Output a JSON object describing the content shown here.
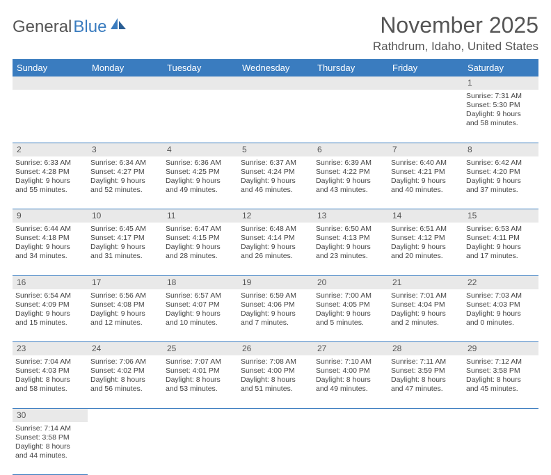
{
  "logo": {
    "general": "General",
    "blue": "Blue"
  },
  "title": "November 2025",
  "location": "Rathdrum, Idaho, United States",
  "colors": {
    "header_bg": "#3a7cbf",
    "header_text": "#ffffff",
    "daynum_bg": "#e9e9e9",
    "border": "#3a7cbf",
    "body_text": "#444",
    "title_text": "#555"
  },
  "day_headers": [
    "Sunday",
    "Monday",
    "Tuesday",
    "Wednesday",
    "Thursday",
    "Friday",
    "Saturday"
  ],
  "weeks": [
    [
      null,
      null,
      null,
      null,
      null,
      null,
      {
        "n": "1",
        "sr": "Sunrise: 7:31 AM",
        "ss": "Sunset: 5:30 PM",
        "d1": "Daylight: 9 hours",
        "d2": "and 58 minutes."
      }
    ],
    [
      {
        "n": "2",
        "sr": "Sunrise: 6:33 AM",
        "ss": "Sunset: 4:28 PM",
        "d1": "Daylight: 9 hours",
        "d2": "and 55 minutes."
      },
      {
        "n": "3",
        "sr": "Sunrise: 6:34 AM",
        "ss": "Sunset: 4:27 PM",
        "d1": "Daylight: 9 hours",
        "d2": "and 52 minutes."
      },
      {
        "n": "4",
        "sr": "Sunrise: 6:36 AM",
        "ss": "Sunset: 4:25 PM",
        "d1": "Daylight: 9 hours",
        "d2": "and 49 minutes."
      },
      {
        "n": "5",
        "sr": "Sunrise: 6:37 AM",
        "ss": "Sunset: 4:24 PM",
        "d1": "Daylight: 9 hours",
        "d2": "and 46 minutes."
      },
      {
        "n": "6",
        "sr": "Sunrise: 6:39 AM",
        "ss": "Sunset: 4:22 PM",
        "d1": "Daylight: 9 hours",
        "d2": "and 43 minutes."
      },
      {
        "n": "7",
        "sr": "Sunrise: 6:40 AM",
        "ss": "Sunset: 4:21 PM",
        "d1": "Daylight: 9 hours",
        "d2": "and 40 minutes."
      },
      {
        "n": "8",
        "sr": "Sunrise: 6:42 AM",
        "ss": "Sunset: 4:20 PM",
        "d1": "Daylight: 9 hours",
        "d2": "and 37 minutes."
      }
    ],
    [
      {
        "n": "9",
        "sr": "Sunrise: 6:44 AM",
        "ss": "Sunset: 4:18 PM",
        "d1": "Daylight: 9 hours",
        "d2": "and 34 minutes."
      },
      {
        "n": "10",
        "sr": "Sunrise: 6:45 AM",
        "ss": "Sunset: 4:17 PM",
        "d1": "Daylight: 9 hours",
        "d2": "and 31 minutes."
      },
      {
        "n": "11",
        "sr": "Sunrise: 6:47 AM",
        "ss": "Sunset: 4:15 PM",
        "d1": "Daylight: 9 hours",
        "d2": "and 28 minutes."
      },
      {
        "n": "12",
        "sr": "Sunrise: 6:48 AM",
        "ss": "Sunset: 4:14 PM",
        "d1": "Daylight: 9 hours",
        "d2": "and 26 minutes."
      },
      {
        "n": "13",
        "sr": "Sunrise: 6:50 AM",
        "ss": "Sunset: 4:13 PM",
        "d1": "Daylight: 9 hours",
        "d2": "and 23 minutes."
      },
      {
        "n": "14",
        "sr": "Sunrise: 6:51 AM",
        "ss": "Sunset: 4:12 PM",
        "d1": "Daylight: 9 hours",
        "d2": "and 20 minutes."
      },
      {
        "n": "15",
        "sr": "Sunrise: 6:53 AM",
        "ss": "Sunset: 4:11 PM",
        "d1": "Daylight: 9 hours",
        "d2": "and 17 minutes."
      }
    ],
    [
      {
        "n": "16",
        "sr": "Sunrise: 6:54 AM",
        "ss": "Sunset: 4:09 PM",
        "d1": "Daylight: 9 hours",
        "d2": "and 15 minutes."
      },
      {
        "n": "17",
        "sr": "Sunrise: 6:56 AM",
        "ss": "Sunset: 4:08 PM",
        "d1": "Daylight: 9 hours",
        "d2": "and 12 minutes."
      },
      {
        "n": "18",
        "sr": "Sunrise: 6:57 AM",
        "ss": "Sunset: 4:07 PM",
        "d1": "Daylight: 9 hours",
        "d2": "and 10 minutes."
      },
      {
        "n": "19",
        "sr": "Sunrise: 6:59 AM",
        "ss": "Sunset: 4:06 PM",
        "d1": "Daylight: 9 hours",
        "d2": "and 7 minutes."
      },
      {
        "n": "20",
        "sr": "Sunrise: 7:00 AM",
        "ss": "Sunset: 4:05 PM",
        "d1": "Daylight: 9 hours",
        "d2": "and 5 minutes."
      },
      {
        "n": "21",
        "sr": "Sunrise: 7:01 AM",
        "ss": "Sunset: 4:04 PM",
        "d1": "Daylight: 9 hours",
        "d2": "and 2 minutes."
      },
      {
        "n": "22",
        "sr": "Sunrise: 7:03 AM",
        "ss": "Sunset: 4:03 PM",
        "d1": "Daylight: 9 hours",
        "d2": "and 0 minutes."
      }
    ],
    [
      {
        "n": "23",
        "sr": "Sunrise: 7:04 AM",
        "ss": "Sunset: 4:03 PM",
        "d1": "Daylight: 8 hours",
        "d2": "and 58 minutes."
      },
      {
        "n": "24",
        "sr": "Sunrise: 7:06 AM",
        "ss": "Sunset: 4:02 PM",
        "d1": "Daylight: 8 hours",
        "d2": "and 56 minutes."
      },
      {
        "n": "25",
        "sr": "Sunrise: 7:07 AM",
        "ss": "Sunset: 4:01 PM",
        "d1": "Daylight: 8 hours",
        "d2": "and 53 minutes."
      },
      {
        "n": "26",
        "sr": "Sunrise: 7:08 AM",
        "ss": "Sunset: 4:00 PM",
        "d1": "Daylight: 8 hours",
        "d2": "and 51 minutes."
      },
      {
        "n": "27",
        "sr": "Sunrise: 7:10 AM",
        "ss": "Sunset: 4:00 PM",
        "d1": "Daylight: 8 hours",
        "d2": "and 49 minutes."
      },
      {
        "n": "28",
        "sr": "Sunrise: 7:11 AM",
        "ss": "Sunset: 3:59 PM",
        "d1": "Daylight: 8 hours",
        "d2": "and 47 minutes."
      },
      {
        "n": "29",
        "sr": "Sunrise: 7:12 AM",
        "ss": "Sunset: 3:58 PM",
        "d1": "Daylight: 8 hours",
        "d2": "and 45 minutes."
      }
    ],
    [
      {
        "n": "30",
        "sr": "Sunrise: 7:14 AM",
        "ss": "Sunset: 3:58 PM",
        "d1": "Daylight: 8 hours",
        "d2": "and 44 minutes."
      },
      null,
      null,
      null,
      null,
      null,
      null
    ]
  ]
}
